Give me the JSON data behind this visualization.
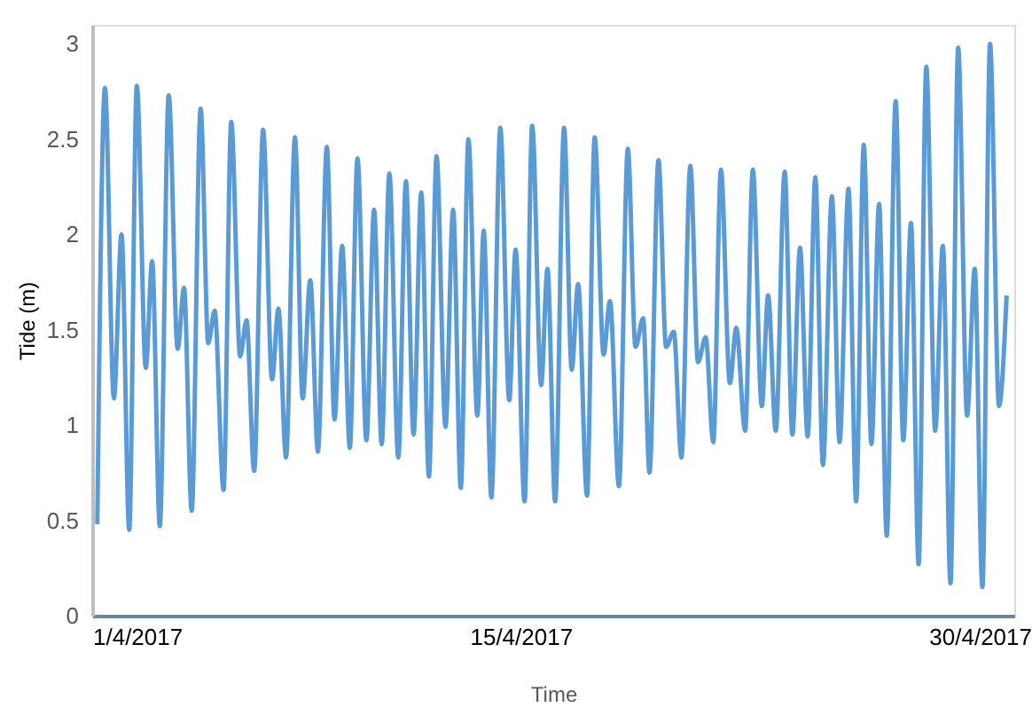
{
  "chart_data": {
    "type": "line",
    "xlabel": "Time",
    "ylabel": "Tide (m)",
    "x": [
      "2017-04-01T04:00",
      "2017-04-01T10:00",
      "2017-04-01T17:00",
      "2017-04-01T23:00",
      "2017-04-02T05:00",
      "2017-04-02T11:00",
      "2017-04-02T18:00",
      "2017-04-02T23:00",
      "2017-04-03T05:00",
      "2017-04-03T12:00",
      "2017-04-03T19:00",
      "2017-04-04T00:00",
      "2017-04-04T06:00",
      "2017-04-04T13:00",
      "2017-04-04T19:00",
      "2017-04-05T00:00",
      "2017-04-05T07:00",
      "2017-04-05T13:00",
      "2017-04-05T20:00",
      "2017-04-06T01:00",
      "2017-04-06T07:00",
      "2017-04-06T14:00",
      "2017-04-06T21:00",
      "2017-04-07T02:00",
      "2017-04-07T08:00",
      "2017-04-07T15:00",
      "2017-04-07T21:00",
      "2017-04-08T03:00",
      "2017-04-08T09:00",
      "2017-04-08T16:00",
      "2017-04-08T22:00",
      "2017-04-09T04:00",
      "2017-04-09T10:00",
      "2017-04-09T16:00",
      "2017-04-09T23:00",
      "2017-04-10T05:00",
      "2017-04-10T11:00",
      "2017-04-10T17:00",
      "2017-04-11T00:00",
      "2017-04-11T06:00",
      "2017-04-11T12:00",
      "2017-04-11T18:00",
      "2017-04-12T00:00",
      "2017-04-12T06:00",
      "2017-04-12T13:00",
      "2017-04-12T19:00",
      "2017-04-13T01:00",
      "2017-04-13T07:00",
      "2017-04-13T14:00",
      "2017-04-13T19:00",
      "2017-04-14T01:00",
      "2017-04-14T08:00",
      "2017-04-14T15:00",
      "2017-04-14T20:00",
      "2017-04-15T03:00",
      "2017-04-15T09:00",
      "2017-04-15T16:00",
      "2017-04-15T21:00",
      "2017-04-16T03:00",
      "2017-04-16T10:00",
      "2017-04-16T16:00",
      "2017-04-16T21:00",
      "2017-04-17T04:00",
      "2017-04-17T10:00",
      "2017-04-17T17:00",
      "2017-04-17T22:00",
      "2017-04-18T05:00",
      "2017-04-18T12:00",
      "2017-04-18T18:00",
      "2017-04-19T00:00",
      "2017-04-19T05:00",
      "2017-04-19T12:00",
      "2017-04-19T18:00",
      "2017-04-20T00:00",
      "2017-04-20T06:00",
      "2017-04-20T13:00",
      "2017-04-20T19:00",
      "2017-04-21T01:00",
      "2017-04-21T07:00",
      "2017-04-21T13:00",
      "2017-04-21T20:00",
      "2017-04-22T01:00",
      "2017-04-22T08:00",
      "2017-04-22T14:00",
      "2017-04-22T21:00",
      "2017-04-23T02:00",
      "2017-04-23T08:00",
      "2017-04-23T15:00",
      "2017-04-23T21:00",
      "2017-04-24T03:00",
      "2017-04-24T09:00",
      "2017-04-24T15:00",
      "2017-04-24T21:00",
      "2017-04-25T04:00",
      "2017-04-25T10:00",
      "2017-04-25T17:00",
      "2017-04-25T23:00",
      "2017-04-26T05:00",
      "2017-04-26T11:00",
      "2017-04-26T17:00",
      "2017-04-26T23:00",
      "2017-04-27T06:00",
      "2017-04-27T12:00",
      "2017-04-27T18:00",
      "2017-04-28T00:00",
      "2017-04-28T06:00",
      "2017-04-28T13:00",
      "2017-04-28T19:00",
      "2017-04-29T01:00",
      "2017-04-29T07:00",
      "2017-04-29T14:00",
      "2017-04-29T20:00",
      "2017-04-30T02:00",
      "2017-04-30T08:00",
      "2017-04-30T15:00",
      "2017-04-30T21:00"
    ],
    "series": [
      {
        "color": "#5b9bd5",
        "values": [
          0.48,
          2.77,
          1.14,
          2.0,
          0.45,
          2.78,
          1.3,
          1.86,
          0.47,
          2.73,
          1.4,
          1.72,
          0.55,
          2.66,
          1.43,
          1.6,
          0.66,
          2.59,
          1.36,
          1.55,
          0.76,
          2.55,
          1.24,
          1.61,
          0.83,
          2.51,
          1.14,
          1.76,
          0.86,
          2.46,
          1.03,
          1.94,
          0.88,
          2.4,
          0.92,
          2.13,
          0.9,
          2.32,
          0.83,
          2.28,
          0.95,
          2.22,
          0.73,
          2.41,
          0.99,
          2.13,
          0.67,
          2.5,
          1.05,
          2.02,
          0.62,
          2.56,
          1.13,
          1.92,
          0.6,
          2.57,
          1.21,
          1.82,
          0.6,
          2.56,
          1.29,
          1.74,
          0.63,
          2.51,
          1.37,
          1.65,
          0.68,
          2.45,
          1.41,
          1.56,
          0.75,
          2.39,
          1.41,
          1.49,
          0.83,
          2.36,
          1.33,
          1.46,
          0.91,
          2.34,
          1.22,
          1.51,
          0.97,
          2.34,
          1.1,
          1.68,
          0.97,
          2.33,
          0.95,
          1.93,
          0.94,
          2.3,
          0.79,
          2.2,
          0.91,
          2.24,
          0.6,
          2.47,
          0.9,
          2.16,
          0.42,
          2.7,
          0.92,
          2.06,
          0.27,
          2.88,
          0.97,
          1.94,
          0.17,
          2.98,
          1.05,
          1.82,
          0.15,
          3.0,
          1.1,
          1.68
        ]
      }
    ],
    "xlim": [
      "2017-04-01T00:00",
      "2017-05-01T03:00"
    ],
    "xticks": [
      {
        "value": "2017-04-01",
        "label": "1/4/2017"
      },
      {
        "value": "2017-04-15",
        "label": "15/4/2017"
      },
      {
        "value": "2017-04-30",
        "label": "30/4/2017"
      }
    ],
    "ylim": [
      0,
      3.1
    ],
    "yticks": [
      0,
      0.5,
      1,
      1.5,
      2,
      2.5,
      3
    ],
    "grid": false,
    "marker": "none",
    "line_style": "solid"
  }
}
